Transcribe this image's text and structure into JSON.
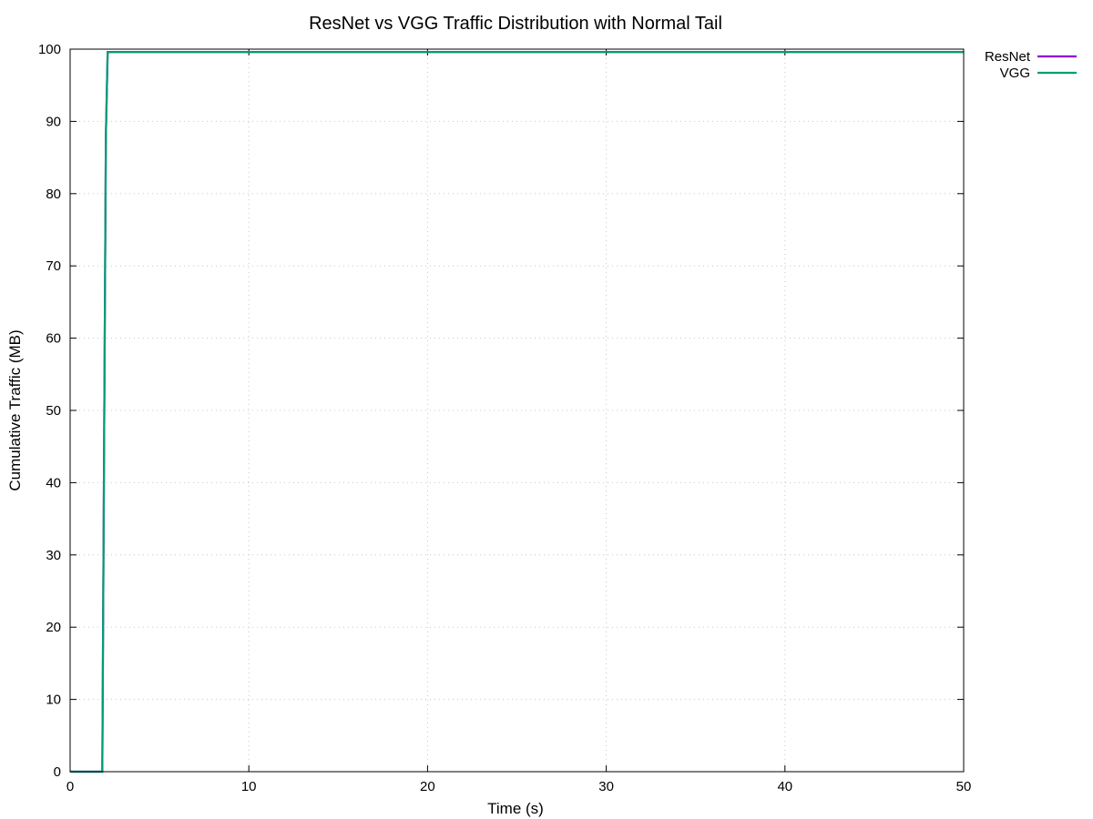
{
  "chart_data": {
    "type": "line",
    "title": "ResNet vs VGG Traffic Distribution with Normal Tail",
    "xlabel": "Time (s)",
    "ylabel": "Cumulative Traffic (MB)",
    "xlim": [
      0,
      50
    ],
    "ylim": [
      0,
      100
    ],
    "xticks": [
      0,
      10,
      20,
      30,
      40,
      50
    ],
    "yticks": [
      0,
      10,
      20,
      30,
      40,
      50,
      60,
      70,
      80,
      90,
      100
    ],
    "grid": true,
    "legend_position": "top-right, outside plot",
    "series": [
      {
        "name": "ResNet",
        "color": "#9400d3",
        "x": [
          0,
          1.8,
          1.9,
          2.0,
          2.1,
          50
        ],
        "y": [
          0,
          0,
          45,
          88,
          99.6,
          99.6
        ]
      },
      {
        "name": "VGG",
        "color": "#009e73",
        "x": [
          0,
          1.8,
          1.9,
          2.0,
          2.1,
          50
        ],
        "y": [
          0,
          0,
          45,
          88,
          99.6,
          99.6
        ]
      }
    ]
  }
}
